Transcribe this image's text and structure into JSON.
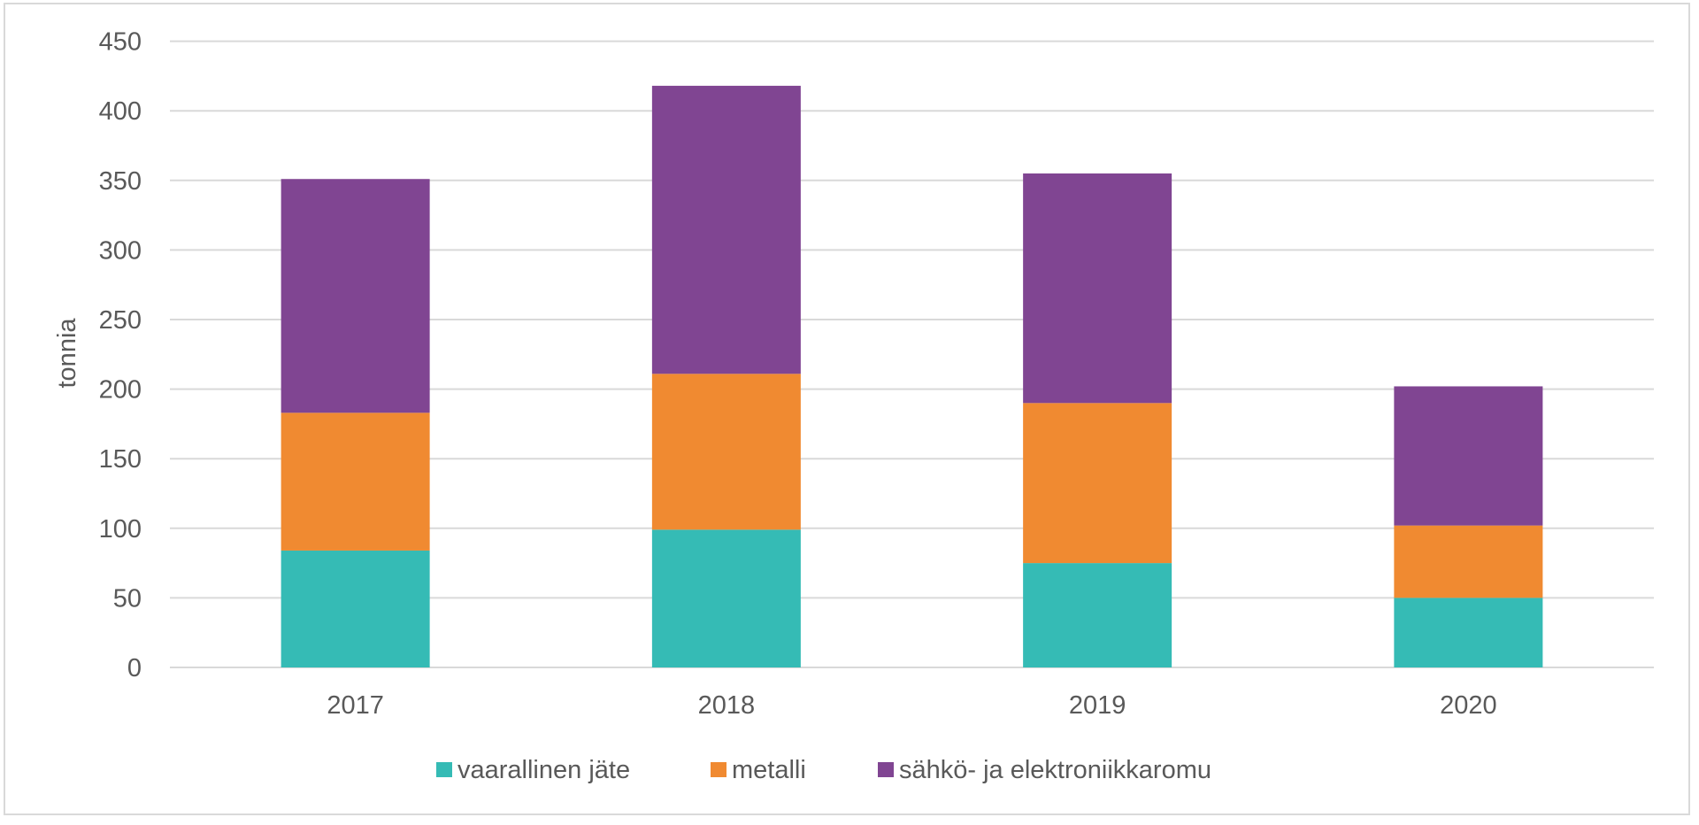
{
  "chart_data": {
    "type": "bar",
    "stacked": true,
    "title": "",
    "xlabel": "",
    "ylabel": "tonnia",
    "ylim": [
      0,
      450
    ],
    "yticks": [
      0,
      50,
      100,
      150,
      200,
      250,
      300,
      350,
      400,
      450
    ],
    "grid": true,
    "legend_position": "bottom",
    "categories": [
      "2017",
      "2018",
      "2019",
      "2020"
    ],
    "series": [
      {
        "name": "vaarallinen jäte",
        "color": "#35BBB5",
        "values": [
          84,
          99,
          75,
          50
        ]
      },
      {
        "name": "metalli",
        "color": "#F08A31",
        "values": [
          99,
          112,
          115,
          52
        ]
      },
      {
        "name": "sähkö- ja elektroniikkaromu",
        "color": "#804592",
        "values": [
          168,
          207,
          165,
          100
        ]
      }
    ]
  },
  "colors": {
    "gridline": "#d9d9d9",
    "text": "#595959",
    "border": "#d9d9d9"
  }
}
